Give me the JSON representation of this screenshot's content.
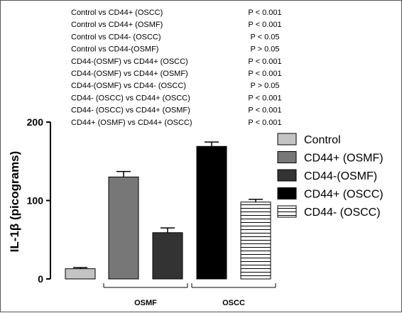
{
  "comparisons": [
    {
      "label": "Control vs CD44+ (OSCC)",
      "p": "P < 0.001"
    },
    {
      "label": "Control vs CD44+ (OSMF)",
      "p": "P < 0.001"
    },
    {
      "label": "Control vs CD44- (OSCC)",
      "p": "P < 0.05"
    },
    {
      "label": "Control vs CD44-(OSMF)",
      "p": "P > 0.05"
    },
    {
      "label": "CD44-(OSMF) vs CD44+ (OSCC)",
      "p": "P < 0.001"
    },
    {
      "label": "CD44-(OSMF) vs CD44+ (OSMF)",
      "p": "P < 0.001"
    },
    {
      "label": "CD44-(OSMF) vs CD44- (OSCC)",
      "p": "P > 0.05"
    },
    {
      "label": "CD44- (OSCC) vs CD44+ (OSCC)",
      "p": "P < 0.001"
    },
    {
      "label": "CD44- (OSCC) vs CD44+ (OSMF)",
      "p": "P < 0.001"
    },
    {
      "label": "CD44+ (OSMF) vs CD44+ (OSCC)",
      "p": "P < 0.001"
    }
  ],
  "chart_data": {
    "type": "bar",
    "ylabel": "IL-1β (picograms)",
    "ylim": [
      0,
      200
    ],
    "yticks": [
      "0",
      "100",
      "200"
    ],
    "series": [
      {
        "name": "Control",
        "value": 13,
        "error": 1.5,
        "fill": "#c4c4c4"
      },
      {
        "name": "CD44+ (OSMF)",
        "value": 130,
        "error": 7,
        "fill": "#777777"
      },
      {
        "name": "CD44-(OSMF)",
        "value": 59,
        "error": 6,
        "fill": "#333333"
      },
      {
        "name": "CD44+ (OSCC)",
        "value": 169,
        "error": 5.5,
        "fill": "#000000"
      },
      {
        "name": "CD44- (OSCC)",
        "value": 98,
        "error": 3.5,
        "fill": "stripes"
      }
    ],
    "groups": [
      {
        "label": "OSMF",
        "members": [
          "CD44+ (OSMF)",
          "CD44-(OSMF)"
        ]
      },
      {
        "label": "OSCC",
        "members": [
          "CD44+ (OSCC)",
          "CD44- (OSCC)"
        ]
      }
    ],
    "legend_position": "right",
    "grid": false
  }
}
